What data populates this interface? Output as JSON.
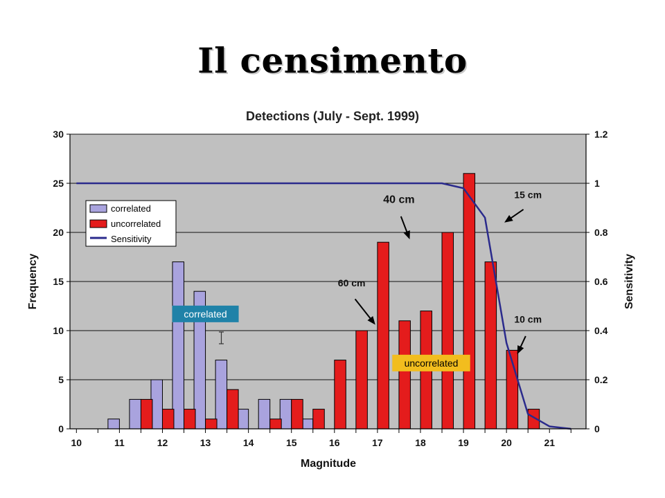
{
  "slide": {
    "title": "Il censimento"
  },
  "chart_data": {
    "type": "bar",
    "title": "Detections (July - Sept. 1999)",
    "xlabel": "Magnitude",
    "ylabel": "Frequency",
    "y2label": "Sensitivity",
    "xlim": [
      9.85,
      21.85
    ],
    "ylim": [
      0,
      30
    ],
    "y2lim": [
      0,
      1.2
    ],
    "x_ticks": [
      "10",
      "11",
      "12",
      "13",
      "14",
      "15",
      "16",
      "17",
      "18",
      "19",
      "20",
      "21"
    ],
    "y_ticks": [
      "0",
      "5",
      "10",
      "15",
      "20",
      "25",
      "30"
    ],
    "y2_ticks": [
      "0",
      "0.2",
      "0.4",
      "0.6",
      "0.8",
      "1",
      "1.2"
    ],
    "grid": true,
    "legend_position": "upper-left",
    "colors": {
      "correlated": "#a9a3de",
      "uncorrelated": "#e41c1c",
      "sensitivity": "#2a2a8c",
      "plot_bg": "#c0c0c0"
    },
    "series": [
      {
        "name": "correlated",
        "x": [
          10.0,
          10.5,
          11.0,
          11.5,
          12.0,
          12.5,
          13.0,
          13.5,
          14.0,
          14.5,
          15.0,
          15.5,
          16.0,
          16.5,
          17.0,
          17.5,
          18.0,
          18.5,
          19.0,
          19.5,
          20.0,
          20.5,
          21.0
        ],
        "values": [
          0,
          0,
          1,
          3,
          5,
          17,
          14,
          7,
          2,
          3,
          3,
          1,
          0,
          0,
          0,
          0,
          0,
          0,
          0,
          0,
          0,
          0,
          0
        ]
      },
      {
        "name": "uncorrelated",
        "x": [
          10.0,
          10.5,
          11.0,
          11.5,
          12.0,
          12.5,
          13.0,
          13.5,
          14.0,
          14.5,
          15.0,
          15.5,
          16.0,
          16.5,
          17.0,
          17.5,
          18.0,
          18.5,
          19.0,
          19.5,
          20.0,
          20.5,
          21.0
        ],
        "values": [
          0,
          0,
          0,
          3,
          2,
          2,
          1,
          4,
          0,
          1,
          3,
          2,
          7,
          10,
          19,
          11,
          12,
          20,
          26,
          17,
          8,
          2,
          0
        ]
      },
      {
        "name": "Sensitivity",
        "type": "line",
        "axis": "right",
        "x": [
          10.0,
          18.5,
          19.0,
          19.5,
          20.0,
          20.5,
          21.0,
          21.5
        ],
        "values": [
          1.0,
          1.0,
          0.98,
          0.86,
          0.35,
          0.06,
          0.01,
          0.0
        ]
      }
    ],
    "annotations": [
      {
        "text": "40 cm",
        "x": 17.5,
        "y": 23,
        "arrow_to": [
          17.75,
          19.3
        ]
      },
      {
        "text": "60 cm",
        "x": 16.4,
        "y": 14.5,
        "arrow_to": [
          16.95,
          10.6
        ]
      },
      {
        "text": "15 cm",
        "x": 20.5,
        "y": 23.5,
        "arrow_to": [
          19.95,
          21.0
        ]
      },
      {
        "text": "10 cm",
        "x": 20.5,
        "y": 10.8,
        "arrow_to": [
          20.25,
          7.6
        ]
      }
    ],
    "callouts": [
      {
        "text": "correlated",
        "x": 13.0,
        "y": 11.7,
        "color": "#1f82a8",
        "text_color": "#ffffff"
      },
      {
        "text": "uncorrelated",
        "x": 18.25,
        "y": 6.7,
        "color": "#f2bd1e",
        "text_color": "#000000"
      }
    ]
  }
}
